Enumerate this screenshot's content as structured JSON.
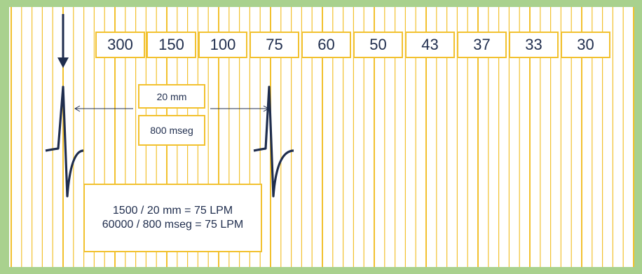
{
  "rate_scale": [
    "300",
    "150",
    "100",
    "75",
    "60",
    "50",
    "43",
    "37",
    "33",
    "30"
  ],
  "measurement": {
    "distance": "20 mm",
    "time": "800 mseg"
  },
  "formula": {
    "line1": "1500 / 20 mm = 75 LPM",
    "line2": "60000 / 800 mseg = 75 LPM"
  },
  "colors": {
    "frame": "#a9d18e",
    "grid": "#f2c12e",
    "ink": "#1f2d4d"
  }
}
